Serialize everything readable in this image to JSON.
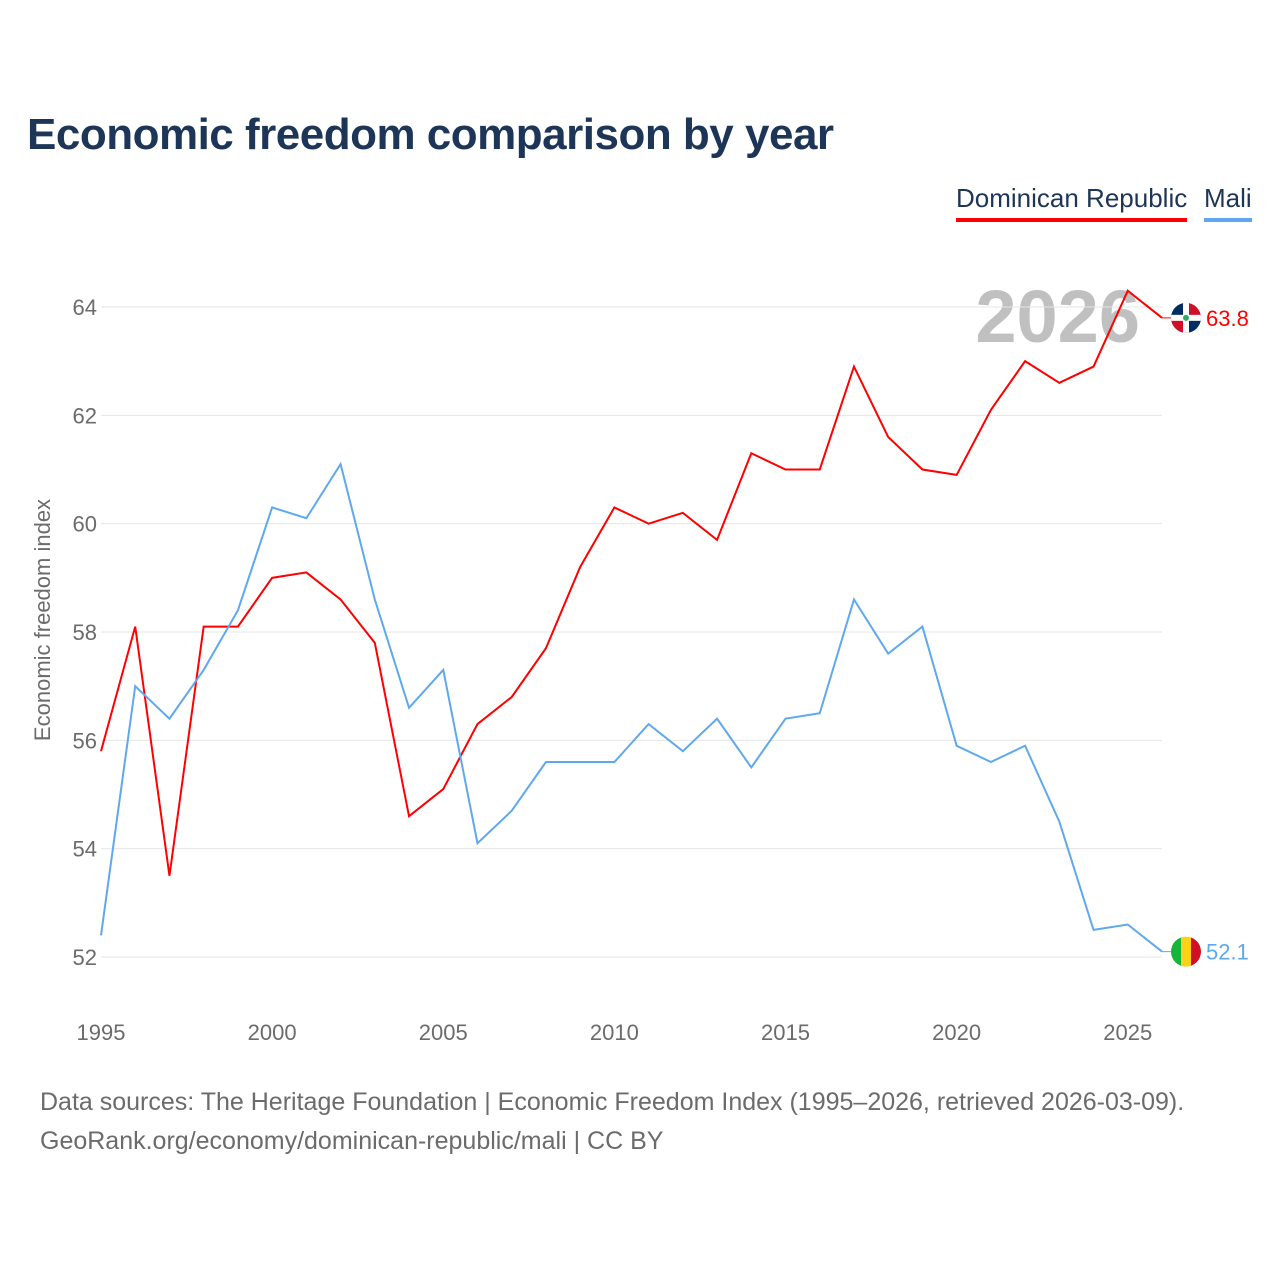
{
  "title": "Economic freedom comparison by year",
  "legend": [
    "Dominican Republic",
    "Mali"
  ],
  "year_watermark": "2026",
  "source_line1": "Data sources: The Heritage Foundation | Economic Freedom Index (1995–2026, retrieved 2026-03-09).",
  "source_line2": "GeoRank.org/economy/dominican-republic/mali | CC BY",
  "chart_data": {
    "type": "line",
    "title": "Economic freedom comparison by year",
    "xlabel": "",
    "ylabel": "Economic freedom index",
    "xlim": [
      1995,
      2026
    ],
    "ylim": [
      52,
      64
    ],
    "x_ticks": [
      1995,
      2000,
      2005,
      2010,
      2015,
      2020,
      2025
    ],
    "y_ticks": [
      52,
      54,
      56,
      58,
      60,
      62,
      64
    ],
    "grid": true,
    "legend_position": "top-right",
    "x": [
      1995,
      1996,
      1997,
      1998,
      1999,
      2000,
      2001,
      2002,
      2003,
      2004,
      2005,
      2006,
      2007,
      2008,
      2009,
      2010,
      2011,
      2012,
      2013,
      2014,
      2015,
      2016,
      2017,
      2018,
      2019,
      2020,
      2021,
      2022,
      2023,
      2024,
      2025,
      2026
    ],
    "series": [
      {
        "name": "Dominican Republic",
        "color": "#ff0000",
        "end_label": "63.8",
        "flag": "dominican-republic-flag",
        "values": [
          55.8,
          58.1,
          53.5,
          58.1,
          58.1,
          59.0,
          59.1,
          58.6,
          57.8,
          54.6,
          55.1,
          56.3,
          56.8,
          57.7,
          59.2,
          60.3,
          60.0,
          60.2,
          59.7,
          61.3,
          61.0,
          61.0,
          62.9,
          61.6,
          61.0,
          60.9,
          62.1,
          63.0,
          62.6,
          62.9,
          64.3,
          63.8
        ]
      },
      {
        "name": "Mali",
        "color": "#5fa8ef",
        "end_label": "52.1",
        "flag": "mali-flag",
        "values": [
          52.4,
          57.0,
          56.4,
          57.3,
          58.4,
          60.3,
          60.1,
          61.1,
          58.6,
          56.6,
          57.3,
          54.1,
          54.7,
          55.6,
          55.6,
          55.6,
          56.3,
          55.8,
          56.4,
          55.5,
          56.4,
          56.5,
          58.6,
          57.6,
          58.1,
          55.9,
          55.6,
          55.9,
          54.5,
          52.5,
          52.6,
          52.1
        ]
      }
    ]
  }
}
